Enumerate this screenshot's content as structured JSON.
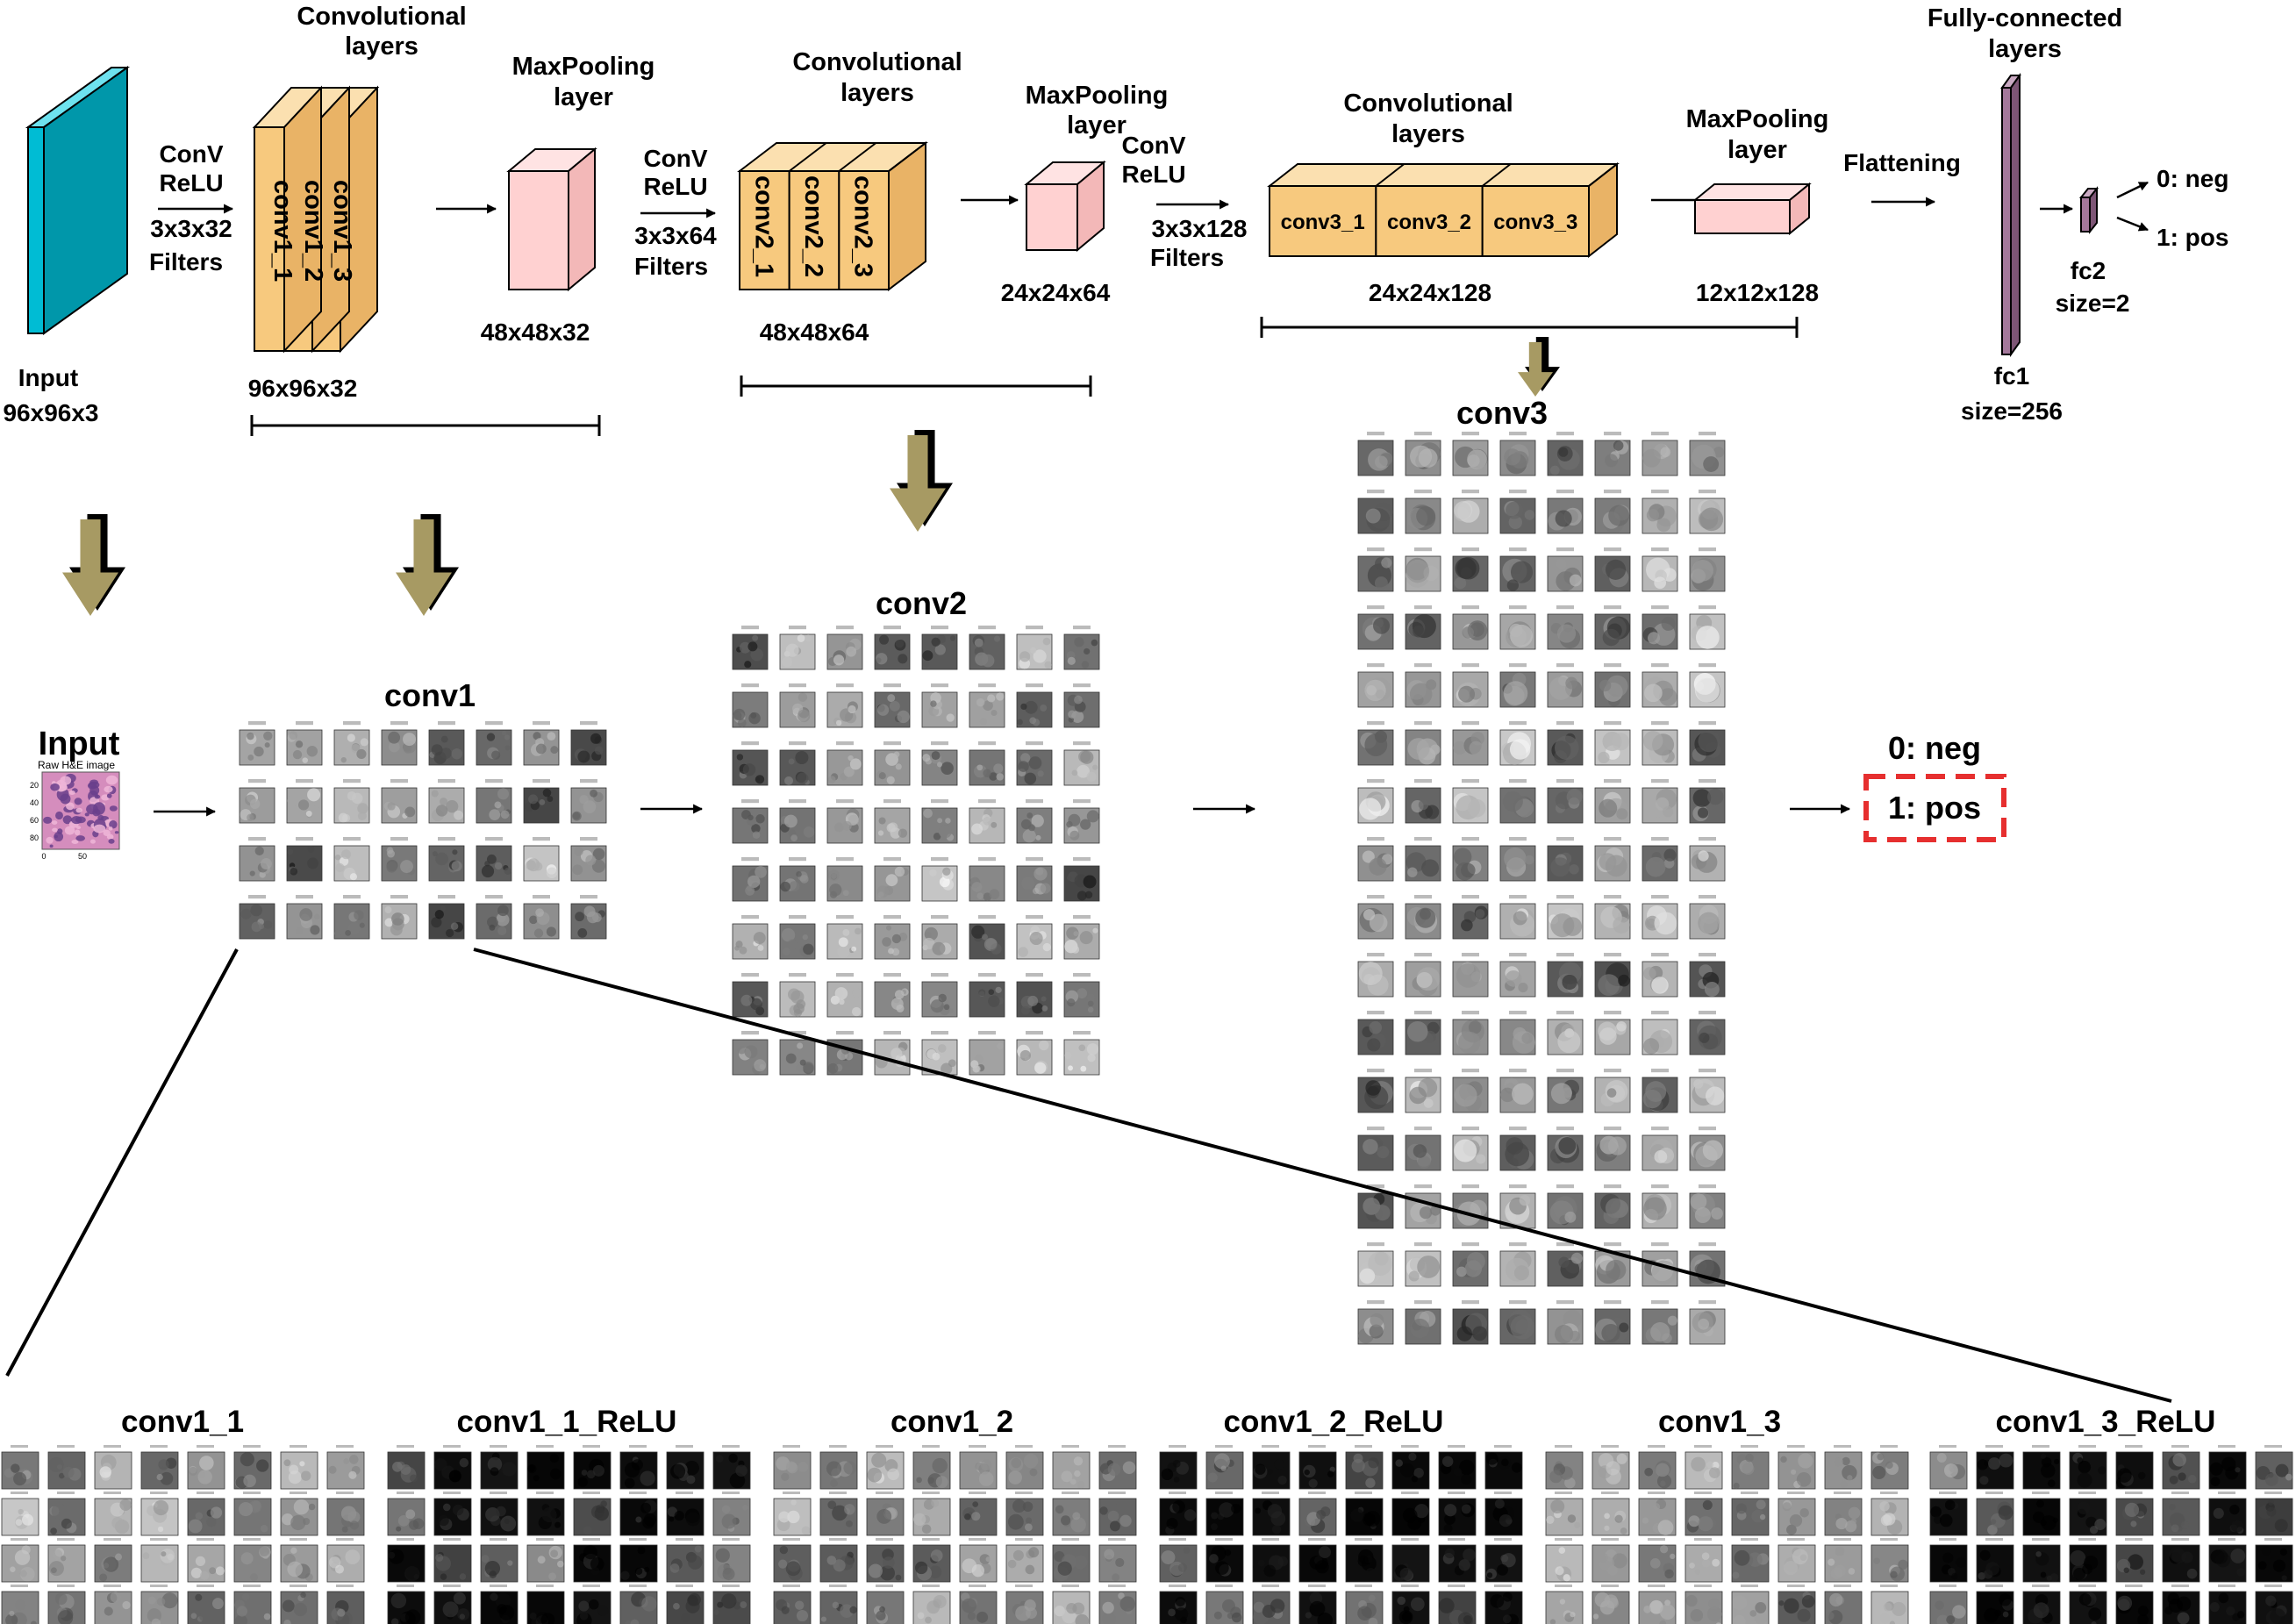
{
  "colors": {
    "input": "#00bcd4",
    "conv_front": "#f7c97e",
    "conv_top": "#fbe0b0",
    "conv_side": "#e9b366",
    "pool_front": "#ffd1d1",
    "pool_top": "#ffe3e3",
    "pool_side": "#f3b8b8",
    "fc": "#a4789b",
    "fc_side": "#7d5575",
    "down_arrow": "#a79a63",
    "highlight": "#e62f2f"
  },
  "arch": {
    "input_label": "Input",
    "input_dims": "96x96x3",
    "step1": [
      "ConV",
      "ReLU",
      "3x3x32",
      "Filters"
    ],
    "conv_block1": {
      "title": [
        "Convolutional",
        "layers"
      ],
      "dims": "96x96x32",
      "layers": [
        "conv1_1",
        "conv1_2",
        "conv1_3"
      ]
    },
    "pool1": {
      "title": [
        "MaxPooling",
        "layer"
      ],
      "dims": "48x48x32"
    },
    "step2": [
      "ConV",
      "ReLU",
      "3x3x64",
      "Filters"
    ],
    "conv_block2": {
      "title": [
        "Convolutional",
        "layers"
      ],
      "dims": "48x48x64",
      "layers": [
        "conv2_1",
        "conv2_2",
        "conv2_3"
      ]
    },
    "pool2": {
      "title": [
        "MaxPooling",
        "layer"
      ],
      "dims": "24x24x64"
    },
    "step3": [
      "ConV",
      "ReLU",
      "3x3x128",
      "Filters"
    ],
    "conv_block3": {
      "title": [
        "Convolutional",
        "layers"
      ],
      "dims": "24x24x128",
      "layers": [
        "conv3_1",
        "conv3_2",
        "conv3_3"
      ]
    },
    "pool3": {
      "title": [
        "MaxPooling",
        "layer"
      ],
      "dims": "12x12x128"
    },
    "flatten_label": "Flattening",
    "fc_title": [
      "Fully-connected",
      "layers"
    ],
    "fc1": [
      "fc1",
      "size=256"
    ],
    "fc2": [
      "fc2",
      "size=2"
    ],
    "outputs": [
      "0: neg",
      "1: pos"
    ]
  },
  "visual": {
    "input_title": "Input",
    "input_subtitle": "Raw H&E image",
    "input_ticks_y": [
      "20",
      "40",
      "60",
      "80"
    ],
    "input_ticks_x": [
      "0",
      "50"
    ],
    "conv1_title": "conv1",
    "conv2_title": "conv2",
    "conv3_title": "conv3",
    "output_neg": "0: neg",
    "output_pos": "1: pos"
  },
  "bottom_panels": [
    "conv1_1",
    "conv1_1_ReLU",
    "conv1_2",
    "conv1_2_ReLU",
    "conv1_3",
    "conv1_3_ReLU"
  ]
}
